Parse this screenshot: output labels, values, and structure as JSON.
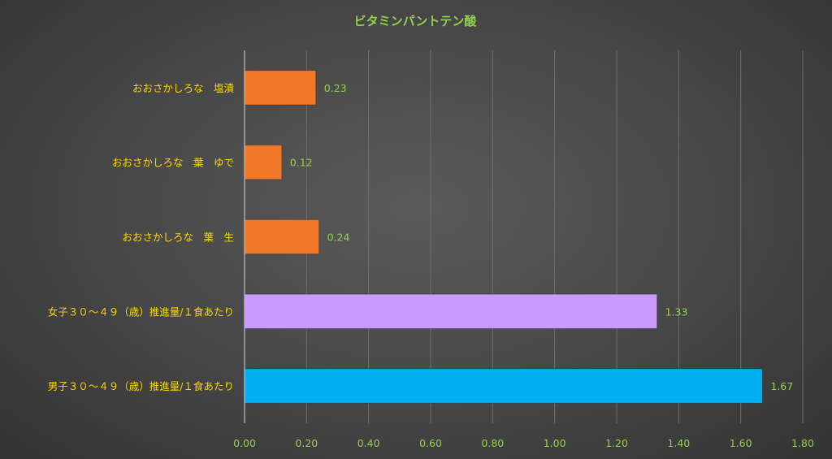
{
  "chart_data": {
    "type": "bar",
    "orientation": "horizontal",
    "title": "ビタミンパントテン酸",
    "categories": [
      "おおさかしろな　塩漬",
      "おおさかしろな　葉　ゆで",
      "おおさかしろな　葉　生",
      "女子３０～４９（歳）推進量/１食あたり",
      "男子３０～４９（歳）推進量/１食あたり"
    ],
    "values": [
      0.23,
      0.12,
      0.24,
      1.33,
      1.67
    ],
    "value_labels": [
      "0.23",
      "0.12",
      "0.24",
      "1.33",
      "1.67"
    ],
    "bar_colors": [
      "#F07828",
      "#F07828",
      "#F07828",
      "#CC99FF",
      "#00B0F0"
    ],
    "xlim": [
      0,
      1.8
    ],
    "x_ticks": [
      0,
      0.2,
      0.4,
      0.6,
      0.8,
      1.0,
      1.2,
      1.4,
      1.6,
      1.8
    ],
    "x_tick_labels": [
      "0.00",
      "0.20",
      "0.40",
      "0.60",
      "0.80",
      "1.00",
      "1.20",
      "1.40",
      "1.60",
      "1.80"
    ],
    "xlabel": "",
    "ylabel": "",
    "grid": "vertical",
    "legend": "none",
    "colors": {
      "title": "#92D050",
      "category_labels": "#FFD700",
      "value_labels": "#92D050",
      "tick_labels": "#92D050",
      "gridlines": "#6E6E6E",
      "axis": "#BFBFBF"
    }
  }
}
